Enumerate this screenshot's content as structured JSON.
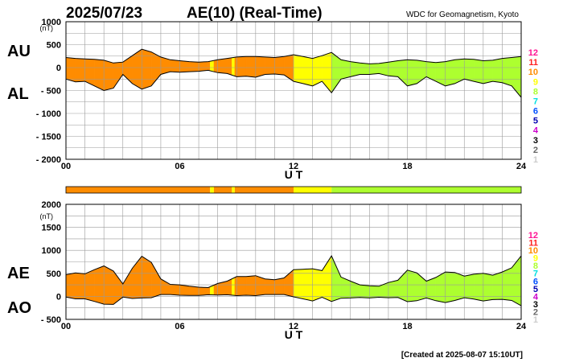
{
  "header": {
    "date": "2025/07/23",
    "title": "AE(10) (Real-Time)",
    "source": "WDC for Geomagnetism, Kyoto"
  },
  "footer": {
    "created": "[Created at 2025-08-07 15:10UT]"
  },
  "colors": {
    "grid": "#9a9a9a",
    "level_colors": {
      "12": "#ff1493",
      "11": "#ff2020",
      "10": "#ff8c00",
      "9": "#ffff00",
      "8": "#adff2f",
      "7": "#00e0e0",
      "6": "#0050ff",
      "5": "#0000b0",
      "4": "#cc00cc",
      "3": "#000000",
      "2": "#666666",
      "1": "#cccccc"
    }
  },
  "level_scale": [
    "12",
    "11",
    "10",
    "9",
    "8",
    "7",
    "6",
    "5",
    "4",
    "3",
    "2",
    "1"
  ],
  "chart_data": [
    {
      "type": "area",
      "panel": "AU/AL",
      "labels": {
        "upper": "AU",
        "lower": "AL"
      },
      "yunit": "(nT)",
      "ylim": [
        -2000,
        1000
      ],
      "yticks": [
        1000,
        500,
        0,
        -500,
        -1000,
        -1500,
        -2000
      ],
      "ytick_labels": [
        "1000",
        "500",
        "0",
        "- 500",
        "- 1000",
        "- 1500",
        "- 2000"
      ],
      "xlim": [
        0,
        24
      ],
      "xticks": [
        0,
        6,
        12,
        18,
        24
      ],
      "xtick_labels": [
        "00",
        "06",
        "12",
        "18",
        "24"
      ],
      "xlabel": "U T",
      "x": [
        0,
        0.5,
        1,
        1.5,
        2,
        2.5,
        3,
        3.5,
        4,
        4.5,
        5,
        5.5,
        6,
        6.5,
        7,
        7.5,
        8,
        8.5,
        9,
        9.5,
        10,
        10.5,
        11,
        11.5,
        12,
        12.5,
        13,
        13.5,
        14,
        14.5,
        15,
        15.5,
        16,
        16.5,
        17,
        17.5,
        18,
        18.5,
        19,
        19.5,
        20,
        20.5,
        21,
        21.5,
        22,
        22.5,
        23,
        23.5,
        24
      ],
      "series": [
        {
          "name": "AU",
          "values": [
            220,
            200,
            190,
            180,
            160,
            100,
            120,
            260,
            400,
            340,
            230,
            170,
            150,
            130,
            120,
            130,
            170,
            200,
            230,
            240,
            240,
            230,
            220,
            240,
            280,
            240,
            200,
            260,
            330,
            170,
            130,
            100,
            80,
            90,
            120,
            150,
            170,
            160,
            130,
            110,
            130,
            170,
            190,
            180,
            150,
            160,
            200,
            220,
            240
          ]
        },
        {
          "name": "AL",
          "values": [
            -250,
            -310,
            -300,
            -400,
            -500,
            -450,
            -150,
            -350,
            -470,
            -400,
            -150,
            -90,
            -100,
            -90,
            -80,
            -60,
            -110,
            -130,
            -200,
            -190,
            -210,
            -150,
            -140,
            -160,
            -300,
            -350,
            -400,
            -300,
            -550,
            -250,
            -200,
            -150,
            -150,
            -130,
            -180,
            -200,
            -400,
            -350,
            -200,
            -300,
            -400,
            -350,
            -250,
            -300,
            -350,
            -300,
            -330,
            -400,
            -650
          ]
        }
      ]
    },
    {
      "type": "area",
      "panel": "AE/AO",
      "labels": {
        "upper": "AE",
        "lower": "AO"
      },
      "yunit": "(nT)",
      "ylim": [
        -500,
        2000
      ],
      "yticks": [
        2000,
        1500,
        1000,
        500,
        0,
        -500
      ],
      "ytick_labels": [
        "2000",
        "1500",
        "1000",
        "500",
        "0",
        "- 500"
      ],
      "xlim": [
        0,
        24
      ],
      "xticks": [
        0,
        6,
        12,
        18,
        24
      ],
      "xtick_labels": [
        "00",
        "06",
        "12",
        "18",
        "24"
      ],
      "xlabel": "U T",
      "x": [
        0,
        0.5,
        1,
        1.5,
        2,
        2.5,
        3,
        3.5,
        4,
        4.5,
        5,
        5.5,
        6,
        6.5,
        7,
        7.5,
        8,
        8.5,
        9,
        9.5,
        10,
        10.5,
        11,
        11.5,
        12,
        12.5,
        13,
        13.5,
        14,
        14.5,
        15,
        15.5,
        16,
        16.5,
        17,
        17.5,
        18,
        18.5,
        19,
        19.5,
        20,
        20.5,
        21,
        21.5,
        22,
        22.5,
        23,
        23.5,
        24
      ],
      "series": [
        {
          "name": "AE",
          "values": [
            470,
            510,
            490,
            580,
            660,
            550,
            270,
            610,
            870,
            740,
            380,
            260,
            250,
            220,
            200,
            190,
            280,
            330,
            430,
            430,
            450,
            380,
            360,
            400,
            580,
            590,
            600,
            560,
            880,
            420,
            330,
            250,
            230,
            220,
            300,
            350,
            570,
            510,
            330,
            410,
            530,
            520,
            440,
            480,
            500,
            460,
            530,
            620,
            880
          ]
        },
        {
          "name": "AO",
          "values": [
            -15,
            -55,
            -55,
            -110,
            -170,
            -175,
            -15,
            -45,
            -35,
            -30,
            40,
            40,
            25,
            20,
            20,
            35,
            30,
            35,
            15,
            25,
            15,
            40,
            40,
            40,
            -10,
            -55,
            -100,
            -20,
            -110,
            -40,
            -35,
            -25,
            -35,
            -20,
            -30,
            -25,
            -115,
            -95,
            -35,
            -95,
            -135,
            -90,
            -30,
            -60,
            -100,
            -70,
            -65,
            -90,
            -205
          ]
        }
      ]
    }
  ],
  "activity_bar": {
    "segments": [
      {
        "start": 0,
        "end": 7.6,
        "level": "10"
      },
      {
        "start": 7.6,
        "end": 7.8,
        "level": "9"
      },
      {
        "start": 7.8,
        "end": 8.75,
        "level": "10"
      },
      {
        "start": 8.75,
        "end": 8.9,
        "level": "9"
      },
      {
        "start": 8.9,
        "end": 12,
        "level": "10"
      },
      {
        "start": 12,
        "end": 14,
        "level": "9"
      },
      {
        "start": 14,
        "end": 24,
        "level": "8"
      }
    ]
  }
}
